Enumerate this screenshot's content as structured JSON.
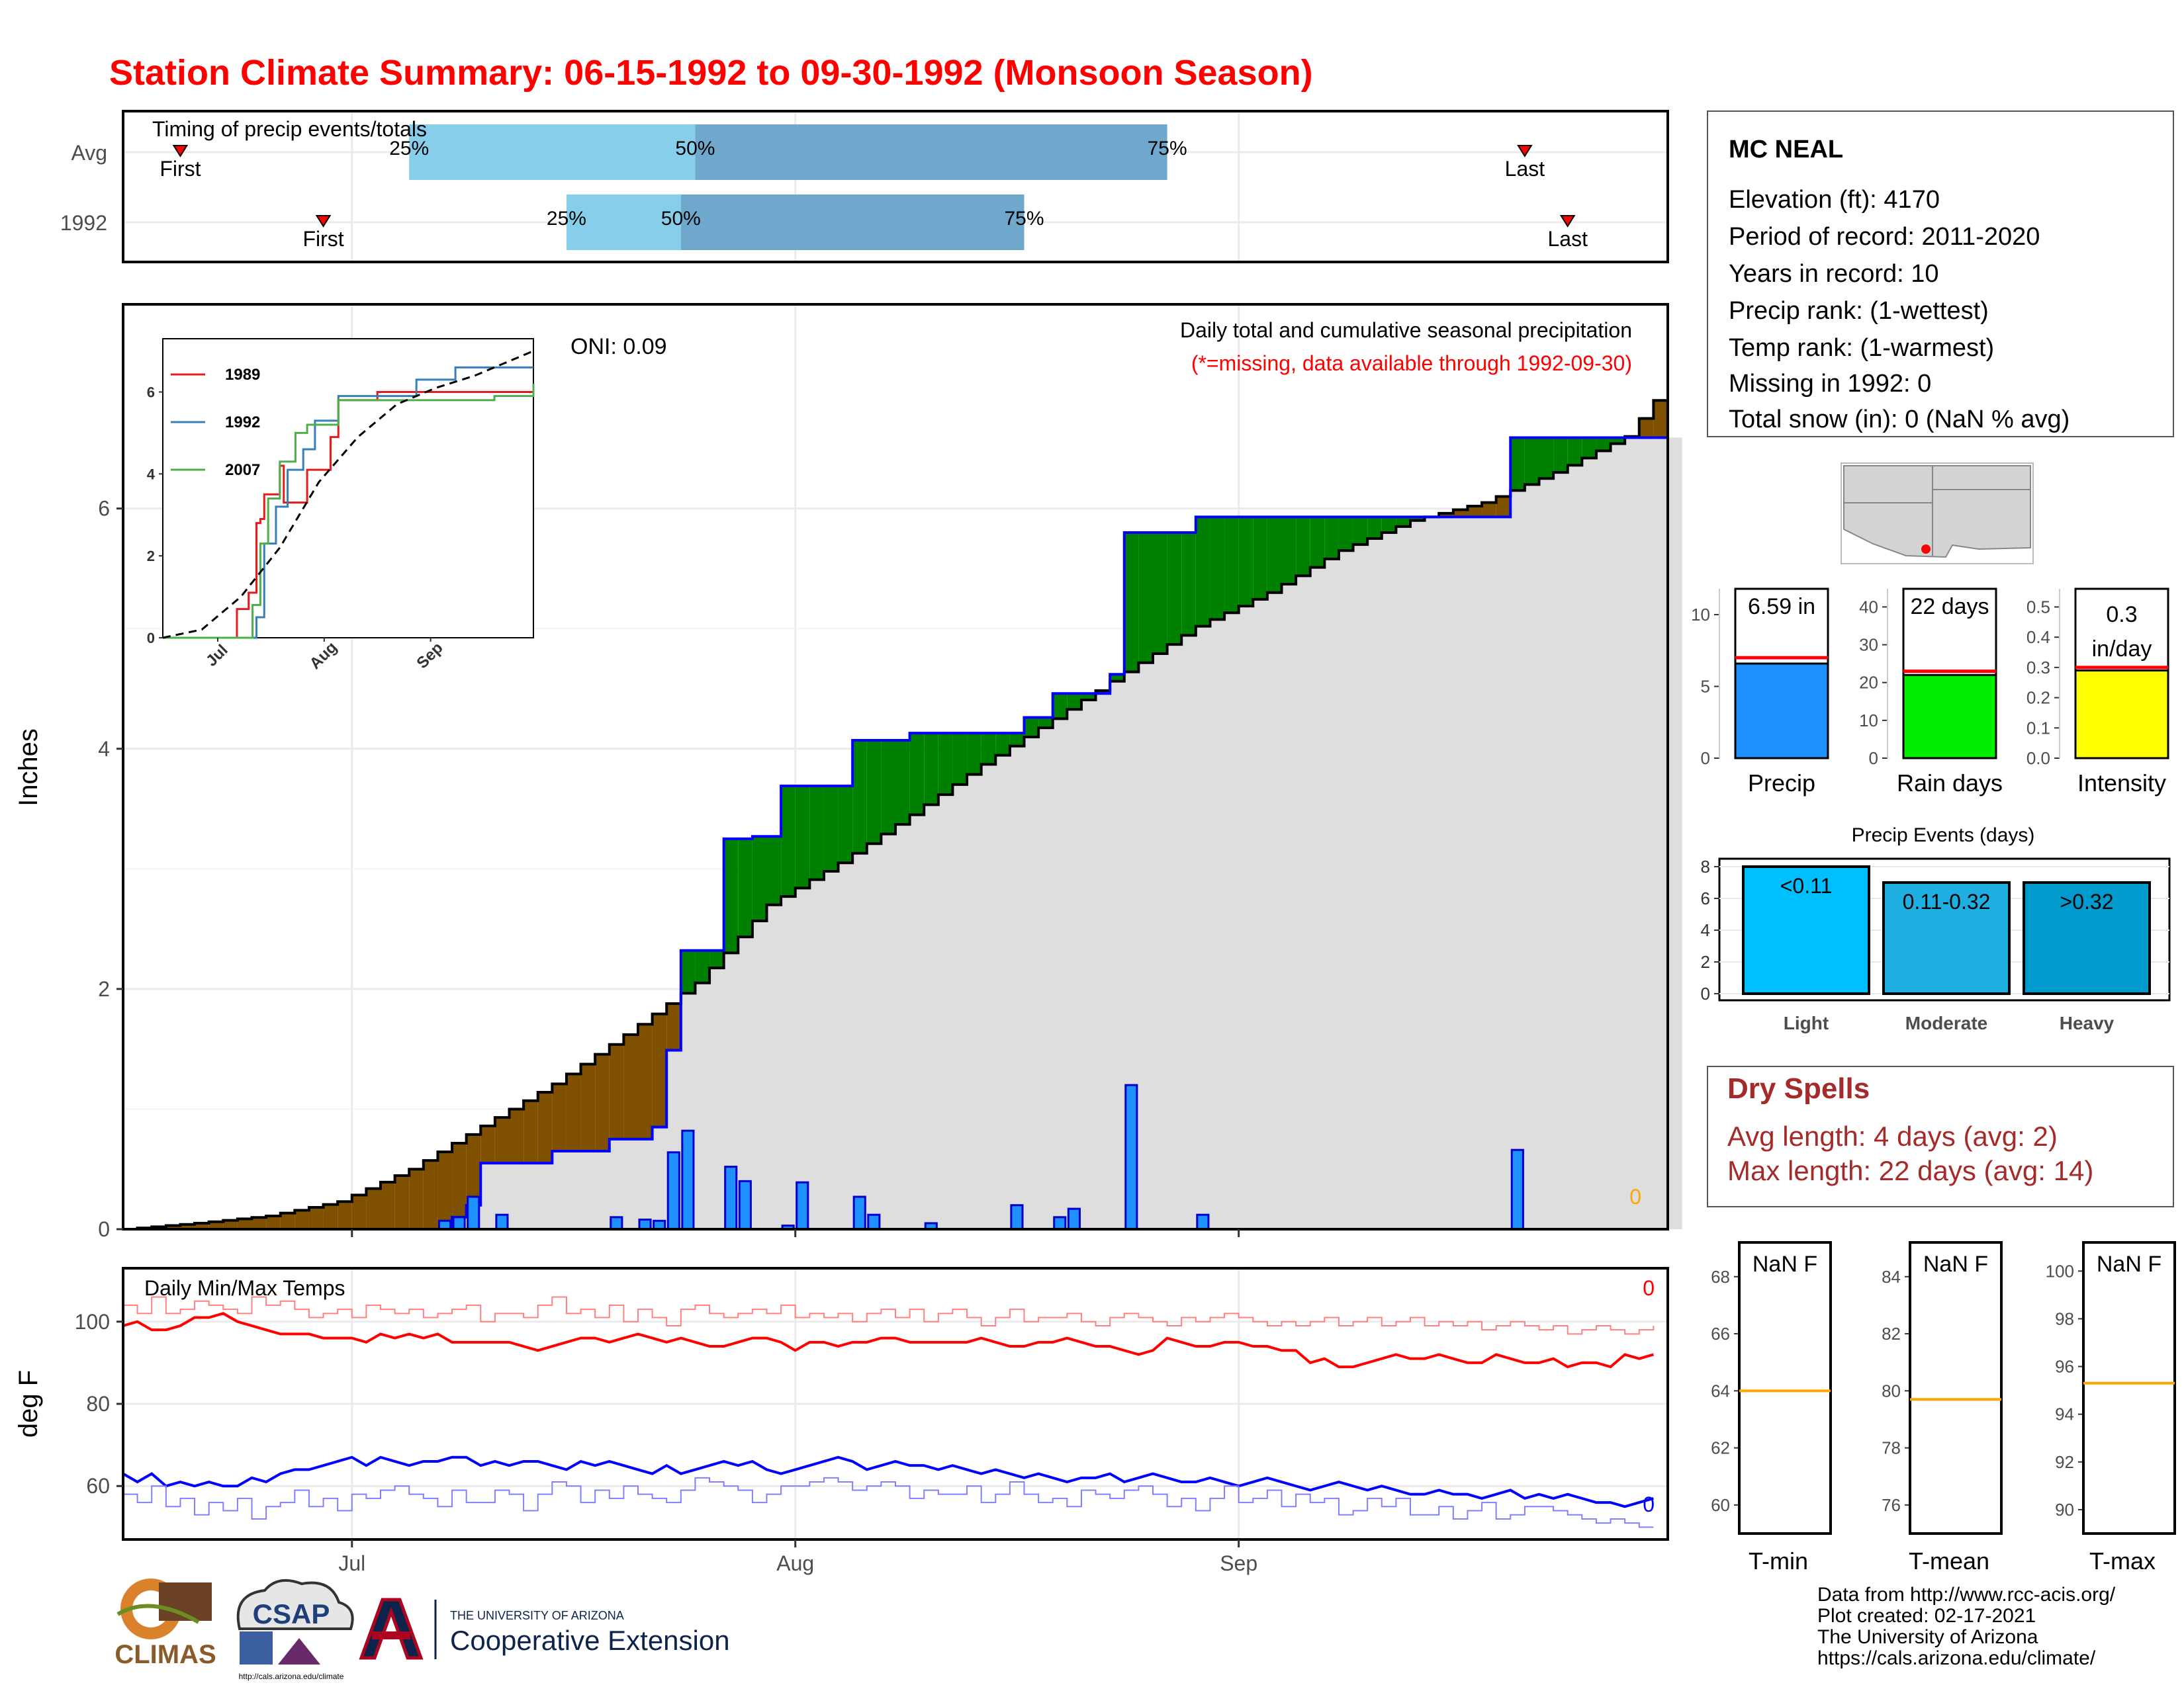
{
  "title": "Station Climate Summary: 06-15-1992 to 09-30-1992 (Monsoon Season)",
  "timing": {
    "title": "Timing of precip events/totals",
    "rows": [
      "Avg",
      "1992"
    ],
    "first_label": "First",
    "last_label": "Last",
    "pct_labels": [
      "25%",
      "50%",
      "75%"
    ]
  },
  "precip_panel": {
    "ylabel": "Inches",
    "caption": "Daily total and cumulative seasonal precipitation",
    "caption_note": "(*=missing, data available through 1992-09-30)",
    "oni": "ONI: 0.09",
    "missing_count": "0"
  },
  "temp_panel": {
    "ylabel": "deg F",
    "caption": "Daily Min/Max Temps",
    "max_missing": "0",
    "min_missing": "0"
  },
  "station": {
    "name": "MC NEAL",
    "lines": [
      "Elevation (ft): 4170",
      "Period of record: 2011-2020",
      "Years in record: 10",
      "Precip rank:  (1-wettest)",
      "Temp rank:  (1-warmest)",
      "Missing in 1992: 0",
      "Total snow (in): 0 (NaN % avg)"
    ]
  },
  "summary_bars": [
    {
      "label": "Precip",
      "value_text": "6.59 in",
      "value": 6.59,
      "avg": 7.0,
      "ticks": [
        "0",
        "5",
        "10"
      ],
      "color": "#1e90ff"
    },
    {
      "label": "Rain days",
      "value_text": "22 days",
      "value": 22,
      "avg": 23,
      "ticks": [
        "0",
        "10",
        "20",
        "30",
        "40"
      ],
      "color": "#00ee00"
    },
    {
      "label": "Intensity",
      "value_text": "0.3",
      "value_text2": "in/day",
      "value": 0.29,
      "avg": 0.3,
      "ticks": [
        "0.0",
        "0.1",
        "0.2",
        "0.3",
        "0.4",
        "0.5"
      ],
      "color": "#ffff00"
    }
  ],
  "precip_events": {
    "title": "Precip Events (days)",
    "ticks": [
      "0",
      "2",
      "4",
      "6",
      "8"
    ],
    "bars": [
      {
        "label": "Light",
        "text": "<0.11",
        "value": 8,
        "color": "#00bfff"
      },
      {
        "label": "Moderate",
        "text": "0.11-0.32",
        "value": 7,
        "color": "#1eaee0"
      },
      {
        "label": "Heavy",
        "text": ">0.32",
        "value": 7,
        "color": "#009acd"
      }
    ]
  },
  "dry_spells": {
    "title": "Dry Spells",
    "avg_line": "Avg length: 4 days (avg: 2)",
    "max_line": "Max length: 22 days (avg: 14)"
  },
  "temp_boxes": [
    {
      "label": "T-min",
      "text": "NaN F",
      "ticks": [
        "60",
        "62",
        "64",
        "66",
        "68"
      ],
      "line": 64
    },
    {
      "label": "T-mean",
      "text": "NaN F",
      "ticks": [
        "76",
        "78",
        "80",
        "82",
        "84"
      ],
      "line": 79.7
    },
    {
      "label": "T-max",
      "text": "NaN F",
      "ticks": [
        "90",
        "92",
        "94",
        "96",
        "98",
        "100"
      ],
      "line": 95.3
    }
  ],
  "logos": {
    "climas": "CLIMAS",
    "csap": "CSAP",
    "csap_url": "http://cals.arizona.edu/climate",
    "ua_top": "THE UNIVERSITY OF ARIZONA",
    "ua_main": "Cooperative Extension"
  },
  "credits": [
    "Data from http://www.rcc-acis.org/",
    "Plot created: 02-17-2021",
    "The University of Arizona",
    "https://cals.arizona.edu/climate/"
  ],
  "colors": {
    "title": "#ff0000",
    "above_avg": "#008000",
    "below_avg": "#7f5000",
    "year_line": "#0000ff",
    "bars": "#1e90ff",
    "dry": "#a52a2a",
    "tmax": "#ff0000",
    "tmin": "#0000ff"
  },
  "chart_data": [
    {
      "type": "bar",
      "name": "timing",
      "x_axis": "date",
      "rows": [
        {
          "row": "Avg",
          "first": "06-19",
          "p25": "07-05",
          "p50": "07-25",
          "p75": "08-27",
          "last": "09-21"
        },
        {
          "row": "1992",
          "first": "06-29",
          "p25": "07-16",
          "p50": "07-24",
          "p75": "08-17",
          "last": "09-24"
        }
      ]
    },
    {
      "type": "area",
      "name": "cumulative_precip",
      "x_axis": "date 1992-06-15 to 1992-09-30",
      "ylabel": "Inches",
      "ylim": [
        0,
        7.7
      ],
      "yticks": [
        0,
        2,
        4,
        6
      ],
      "xticks": [
        "Jul",
        "Aug",
        "Sep"
      ],
      "avg_cumulative": [
        [
          0,
          0.0
        ],
        [
          5,
          0.05
        ],
        [
          10,
          0.11
        ],
        [
          15,
          0.23
        ],
        [
          20,
          0.5
        ],
        [
          25,
          0.86
        ],
        [
          30,
          1.21
        ],
        [
          35,
          1.62
        ],
        [
          40,
          2.05
        ],
        [
          42,
          2.3
        ],
        [
          45,
          2.7
        ],
        [
          50,
          3.05
        ],
        [
          55,
          3.45
        ],
        [
          60,
          3.87
        ],
        [
          65,
          4.25
        ],
        [
          70,
          4.64
        ],
        [
          75,
          5.02
        ],
        [
          80,
          5.3
        ],
        [
          85,
          5.65
        ],
        [
          90,
          5.9
        ],
        [
          95,
          6.05
        ],
        [
          100,
          6.3
        ],
        [
          105,
          6.6
        ],
        [
          108,
          7.05
        ]
      ],
      "year_cumulative": [
        [
          0,
          0.0
        ],
        [
          22,
          0.0
        ],
        [
          23,
          0.1
        ],
        [
          24,
          0.2
        ],
        [
          25,
          0.55
        ],
        [
          27,
          0.55
        ],
        [
          29,
          0.55
        ],
        [
          30,
          0.65
        ],
        [
          33,
          0.65
        ],
        [
          34,
          0.75
        ],
        [
          36,
          0.75
        ],
        [
          37,
          0.85
        ],
        [
          38,
          1.49
        ],
        [
          39,
          2.32
        ],
        [
          42,
          3.25
        ],
        [
          44,
          3.27
        ],
        [
          46,
          3.69
        ],
        [
          51,
          4.07
        ],
        [
          55,
          4.13
        ],
        [
          63,
          4.26
        ],
        [
          65,
          4.46
        ],
        [
          69,
          4.62
        ],
        [
          70,
          5.8
        ],
        [
          75,
          5.93
        ],
        [
          81,
          5.93
        ],
        [
          97,
          6.59
        ],
        [
          108,
          6.59
        ]
      ],
      "daily_bars": [
        [
          22,
          0.07
        ],
        [
          23,
          0.1
        ],
        [
          24,
          0.27
        ],
        [
          26,
          0.12
        ],
        [
          34,
          0.1
        ],
        [
          36,
          0.08
        ],
        [
          37,
          0.07
        ],
        [
          38,
          0.64
        ],
        [
          39,
          0.82
        ],
        [
          42,
          0.52
        ],
        [
          43,
          0.4
        ],
        [
          46,
          0.03
        ],
        [
          47,
          0.39
        ],
        [
          51,
          0.27
        ],
        [
          52,
          0.12
        ],
        [
          56,
          0.05
        ],
        [
          62,
          0.2
        ],
        [
          65,
          0.1
        ],
        [
          66,
          0.17
        ],
        [
          70,
          1.2
        ],
        [
          75,
          0.12
        ],
        [
          97,
          0.66
        ]
      ]
    },
    {
      "type": "line",
      "name": "inset_cumulative",
      "x_axis": "date",
      "xticks": [
        "Jul",
        "Aug",
        "Sep"
      ],
      "yticks": [
        0,
        2,
        4,
        6
      ],
      "series": [
        {
          "name": "1989",
          "color": "#e41a1c",
          "points": [
            [
              0,
              0
            ],
            [
              18,
              0
            ],
            [
              19,
              0.7
            ],
            [
              22,
              1.1
            ],
            [
              24,
              2.8
            ],
            [
              25,
              2.9
            ],
            [
              26,
              3.5
            ],
            [
              30,
              4.2
            ],
            [
              31,
              3.3
            ],
            [
              37,
              4.1
            ],
            [
              43,
              4.9
            ],
            [
              45,
              5.8
            ],
            [
              50,
              5.8
            ],
            [
              55,
              6.0
            ],
            [
              95,
              6.0
            ]
          ]
        },
        {
          "name": "1992",
          "color": "#377eb8",
          "points": [
            [
              0,
              0
            ],
            [
              22,
              0
            ],
            [
              24,
              0.5
            ],
            [
              26,
              2.3
            ],
            [
              29,
              3.2
            ],
            [
              32,
              4.1
            ],
            [
              36,
              4.6
            ],
            [
              39,
              5.3
            ],
            [
              45,
              5.9
            ],
            [
              50,
              5.9
            ],
            [
              65,
              6.3
            ],
            [
              75,
              6.6
            ],
            [
              95,
              6.6
            ]
          ]
        },
        {
          "name": "2007",
          "color": "#4daf4a",
          "points": [
            [
              0,
              0
            ],
            [
              21,
              0
            ],
            [
              23,
              0.8
            ],
            [
              25,
              2.3
            ],
            [
              27,
              3.4
            ],
            [
              30,
              4.3
            ],
            [
              34,
              5.0
            ],
            [
              37,
              5.2
            ],
            [
              40,
              5.2
            ],
            [
              45,
              5.8
            ],
            [
              55,
              5.8
            ],
            [
              65,
              5.8
            ],
            [
              85,
              5.9
            ],
            [
              95,
              6.2
            ]
          ]
        },
        {
          "name": "",
          "color": "#000000",
          "dashed": true,
          "points": [
            [
              0,
              0
            ],
            [
              10,
              0.2
            ],
            [
              20,
              1.0
            ],
            [
              30,
              2.2
            ],
            [
              40,
              3.8
            ],
            [
              50,
              4.9
            ],
            [
              60,
              5.7
            ],
            [
              70,
              6.1
            ],
            [
              80,
              6.4
            ],
            [
              95,
              7.0
            ]
          ]
        }
      ]
    },
    {
      "type": "line",
      "name": "temperatures",
      "x_axis": "date 1992-06-15 to 1992-09-30",
      "ylabel": "deg F",
      "ylim": [
        47,
        113
      ],
      "yticks": [
        60,
        80,
        100
      ],
      "series": [
        {
          "name": "",
          "color": "#ff0000",
          "values": [
            99,
            100,
            98,
            98,
            99,
            101,
            101,
            102,
            100,
            99,
            98,
            97,
            97,
            97,
            96,
            96,
            96,
            95,
            97,
            96,
            97,
            96,
            97,
            95,
            95,
            95,
            95,
            95,
            94,
            93,
            94,
            95,
            96,
            96,
            95,
            96,
            97,
            96,
            95,
            96,
            95,
            94,
            94,
            95,
            96,
            96,
            95,
            93,
            95,
            95,
            94,
            95,
            95,
            96,
            96,
            95,
            95,
            95,
            95,
            95,
            96,
            95,
            94,
            94,
            95,
            95,
            96,
            95,
            94,
            94,
            93,
            92,
            93,
            96,
            95,
            94,
            94,
            95,
            95,
            94,
            94,
            93,
            93,
            90,
            91,
            89,
            89,
            90,
            91,
            92,
            91,
            91,
            92,
            91,
            90,
            90,
            92,
            91,
            90,
            90,
            91,
            89,
            90,
            90,
            89,
            92,
            91,
            92
          ]
        },
        {
          "name": "",
          "color": "#ff8080",
          "values": [
            104,
            102,
            106,
            102,
            103,
            105,
            104,
            103,
            102,
            106,
            104,
            105,
            103,
            101,
            102,
            103,
            101,
            104,
            103,
            102,
            103,
            101,
            102,
            103,
            104,
            100,
            102,
            102,
            101,
            104,
            106,
            102,
            103,
            101,
            104,
            100,
            103,
            101,
            99,
            103,
            104,
            102,
            101,
            102,
            103,
            102,
            104,
            101,
            102,
            101,
            102,
            100,
            102,
            103,
            101,
            103,
            100,
            102,
            103,
            101,
            99,
            101,
            103,
            100,
            101,
            101,
            102,
            100,
            99,
            101,
            102,
            101,
            100,
            99,
            101,
            100,
            101,
            102,
            101,
            100,
            99,
            100,
            99,
            100,
            101,
            99,
            100,
            101,
            99,
            100,
            101,
            99,
            100,
            99,
            100,
            98,
            99,
            100,
            99,
            98,
            99,
            97,
            98,
            99,
            98,
            97,
            98,
            99
          ]
        },
        {
          "name": "",
          "color": "#0000ff",
          "values": [
            63,
            61,
            63,
            60,
            61,
            60,
            61,
            60,
            60,
            62,
            61,
            63,
            64,
            64,
            65,
            66,
            67,
            65,
            67,
            66,
            65,
            66,
            66,
            67,
            67,
            65,
            66,
            65,
            66,
            66,
            65,
            64,
            66,
            65,
            66,
            65,
            64,
            63,
            65,
            63,
            64,
            65,
            66,
            65,
            66,
            64,
            63,
            64,
            65,
            66,
            67,
            66,
            64,
            65,
            66,
            65,
            65,
            64,
            65,
            64,
            63,
            64,
            63,
            62,
            63,
            62,
            61,
            62,
            62,
            63,
            61,
            62,
            63,
            62,
            61,
            61,
            62,
            61,
            60,
            61,
            62,
            61,
            60,
            59,
            60,
            61,
            60,
            59,
            60,
            59,
            58,
            58,
            59,
            58,
            58,
            57,
            58,
            59,
            57,
            58,
            57,
            58,
            57,
            56,
            56,
            55,
            56,
            57
          ]
        },
        {
          "name": "",
          "color": "#8080ff",
          "values": [
            58,
            56,
            60,
            55,
            57,
            53,
            56,
            54,
            57,
            52,
            55,
            56,
            59,
            55,
            57,
            54,
            58,
            57,
            59,
            60,
            58,
            57,
            55,
            59,
            56,
            56,
            59,
            58,
            54,
            58,
            61,
            60,
            56,
            59,
            57,
            60,
            58,
            57,
            56,
            59,
            62,
            61,
            60,
            59,
            56,
            58,
            60,
            60,
            61,
            62,
            61,
            59,
            60,
            61,
            60,
            57,
            59,
            58,
            58,
            60,
            56,
            58,
            61,
            58,
            56,
            57,
            55,
            59,
            58,
            57,
            59,
            60,
            58,
            55,
            57,
            54,
            57,
            60,
            56,
            57,
            59,
            55,
            58,
            56,
            57,
            53,
            54,
            57,
            55,
            57,
            53,
            53,
            55,
            52,
            54,
            56,
            52,
            53,
            55,
            55,
            54,
            53,
            52,
            51,
            52,
            51,
            50,
            50
          ]
        }
      ]
    }
  ]
}
